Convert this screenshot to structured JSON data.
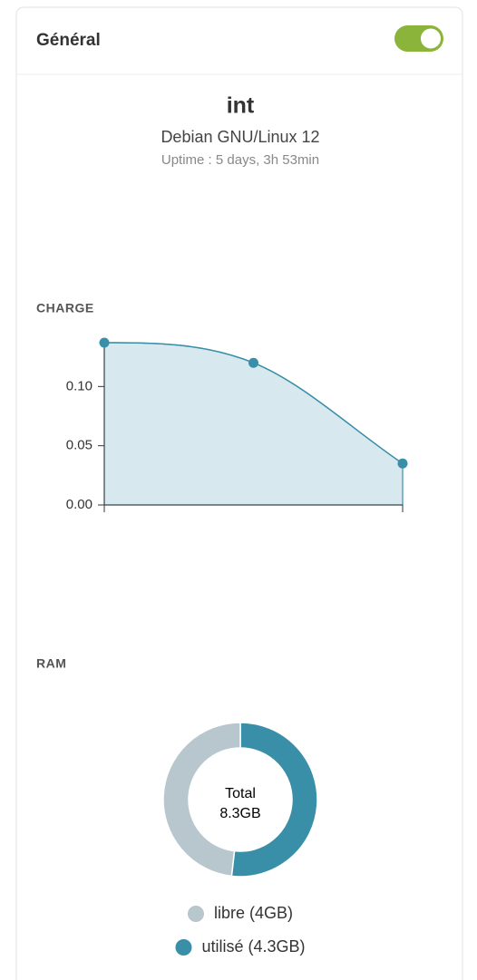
{
  "header": {
    "title": "Général",
    "toggle_on": true
  },
  "host": {
    "name": "int",
    "os": "Debian GNU/Linux 12",
    "uptime": "Uptime : 5 days, 3h 53min"
  },
  "chart_data": [
    {
      "type": "line",
      "title": "CHARGE",
      "categories": [
        null,
        null,
        null
      ],
      "values": [
        0.137,
        0.12,
        0.035
      ],
      "color": "#3a8fa8",
      "area_color": "#d7e8ee",
      "ylim": [
        0,
        0.137
      ],
      "yticks": [
        {
          "value": 0,
          "label": "0.00"
        },
        {
          "value": 0.05,
          "label": "0.05"
        },
        {
          "value": 0.1,
          "label": "0.10"
        }
      ]
    },
    {
      "type": "donut",
      "title": "RAM",
      "categories": [
        "libre (4GB)",
        "utilisé (4.3GB)"
      ],
      "values": [
        4,
        4.3
      ],
      "colors": [
        "#b8c7cd",
        "#3a8fa8"
      ],
      "center_label": "Total",
      "total_label": "8.3GB"
    }
  ]
}
